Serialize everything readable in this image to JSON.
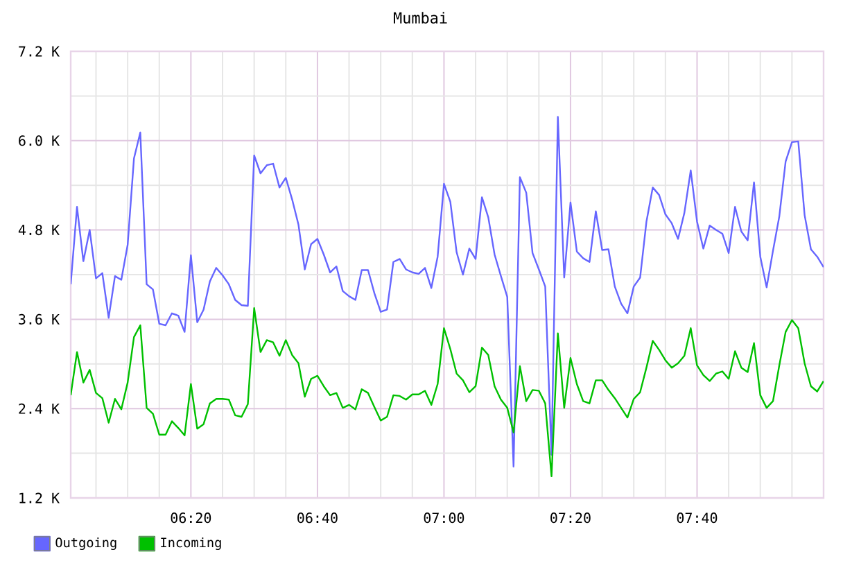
{
  "chart_data": {
    "type": "line",
    "title": "Mumbai",
    "x": [
      6.0167,
      6.0333,
      6.05,
      6.0667,
      6.0833,
      6.1,
      6.1167,
      6.1333,
      6.15,
      6.1667,
      6.1833,
      6.2,
      6.2167,
      6.2333,
      6.25,
      6.2667,
      6.2833,
      6.3,
      6.3167,
      6.3333,
      6.35,
      6.3667,
      6.3833,
      6.4,
      6.4167,
      6.4333,
      6.45,
      6.4667,
      6.4833,
      6.5,
      6.5167,
      6.5333,
      6.55,
      6.5667,
      6.5833,
      6.6,
      6.6167,
      6.6333,
      6.65,
      6.6667,
      6.6833,
      6.7,
      6.7167,
      6.7333,
      6.75,
      6.7667,
      6.7833,
      6.8,
      6.8167,
      6.8333,
      6.85,
      6.8667,
      6.8833,
      6.9,
      6.9167,
      6.9333,
      6.95,
      6.9667,
      6.9833,
      7.0,
      7.0167,
      7.0333,
      7.05,
      7.0667,
      7.0833,
      7.1,
      7.1167,
      7.1333,
      7.15,
      7.1667,
      7.1833,
      7.2,
      7.2167,
      7.2333,
      7.25,
      7.2667,
      7.2833,
      7.3,
      7.3167,
      7.3333,
      7.35,
      7.3667,
      7.3833,
      7.4,
      7.4167,
      7.4333,
      7.45,
      7.4667,
      7.4833,
      7.5,
      7.5167,
      7.5333,
      7.55,
      7.5667,
      7.5833,
      7.6,
      7.6167,
      7.6333,
      7.65,
      7.6667,
      7.6833,
      7.7,
      7.7167,
      7.7333,
      7.75,
      7.7667,
      7.7833,
      7.8,
      7.8167,
      7.8333,
      7.85,
      7.8667,
      7.8833,
      7.9,
      7.9167,
      7.9333,
      7.95,
      7.9667,
      7.9833,
      8.0
    ],
    "series": [
      {
        "name": "Outgoing",
        "color": "#6666ff",
        "values": [
          4070,
          5110,
          4380,
          4800,
          4150,
          4220,
          3620,
          4180,
          4130,
          4600,
          5760,
          6110,
          4070,
          4000,
          3540,
          3520,
          3680,
          3650,
          3430,
          4460,
          3560,
          3730,
          4110,
          4290,
          4190,
          4070,
          3860,
          3790,
          3780,
          5800,
          5560,
          5670,
          5690,
          5370,
          5500,
          5210,
          4870,
          4270,
          4610,
          4680,
          4470,
          4230,
          4310,
          3980,
          3910,
          3860,
          4260,
          4260,
          3950,
          3700,
          3730,
          4370,
          4410,
          4270,
          4230,
          4210,
          4290,
          4020,
          4440,
          5420,
          5180,
          4500,
          4200,
          4550,
          4410,
          5240,
          4970,
          4470,
          4180,
          3900,
          1620,
          5510,
          5300,
          4490,
          4270,
          4040,
          1780,
          6320,
          4160,
          5170,
          4510,
          4420,
          4370,
          5050,
          4530,
          4540,
          4040,
          3810,
          3680,
          4040,
          4160,
          4910,
          5370,
          5270,
          5010,
          4890,
          4680,
          5030,
          5600,
          4910,
          4550,
          4860,
          4800,
          4750,
          4490,
          5110,
          4780,
          4660,
          5440,
          4440,
          4030,
          4520,
          4980,
          5720,
          5980,
          5990,
          5000,
          4540,
          4440,
          4300
        ]
      },
      {
        "name": "Incoming",
        "color": "#00c000",
        "values": [
          2580,
          3160,
          2750,
          2920,
          2610,
          2540,
          2210,
          2530,
          2390,
          2750,
          3360,
          3520,
          2410,
          2330,
          2050,
          2050,
          2230,
          2140,
          2040,
          2730,
          2130,
          2190,
          2470,
          2530,
          2530,
          2520,
          2310,
          2290,
          2460,
          3750,
          3160,
          3320,
          3290,
          3110,
          3320,
          3120,
          3010,
          2560,
          2800,
          2840,
          2700,
          2580,
          2610,
          2410,
          2450,
          2390,
          2660,
          2610,
          2420,
          2240,
          2290,
          2580,
          2570,
          2520,
          2590,
          2590,
          2640,
          2450,
          2730,
          3480,
          3200,
          2870,
          2780,
          2620,
          2700,
          3220,
          3120,
          2700,
          2520,
          2410,
          2080,
          2970,
          2500,
          2650,
          2640,
          2470,
          1490,
          3410,
          2410,
          3080,
          2730,
          2500,
          2470,
          2780,
          2780,
          2650,
          2540,
          2410,
          2280,
          2530,
          2620,
          2950,
          3310,
          3190,
          3050,
          2950,
          3010,
          3110,
          3480,
          2980,
          2850,
          2770,
          2870,
          2900,
          2800,
          3170,
          2950,
          2890,
          3280,
          2580,
          2410,
          2500,
          2980,
          3430,
          3590,
          3480,
          3010,
          2700,
          2630,
          2770
        ]
      }
    ],
    "xlim": [
      6.0167,
      8.0
    ],
    "ylim": [
      1200,
      7200
    ],
    "xticks": [
      {
        "value": 6.0833,
        "label": null
      },
      {
        "value": 6.1667,
        "label": null
      },
      {
        "value": 6.25,
        "label": null
      },
      {
        "value": 6.3333,
        "label": "06:20"
      },
      {
        "value": 6.4167,
        "label": null
      },
      {
        "value": 6.5,
        "label": null
      },
      {
        "value": 6.5833,
        "label": null
      },
      {
        "value": 6.6667,
        "label": "06:40"
      },
      {
        "value": 6.75,
        "label": null
      },
      {
        "value": 6.8333,
        "label": null
      },
      {
        "value": 6.9167,
        "label": null
      },
      {
        "value": 7.0,
        "label": "07:00"
      },
      {
        "value": 7.0833,
        "label": null
      },
      {
        "value": 7.1667,
        "label": null
      },
      {
        "value": 7.25,
        "label": null
      },
      {
        "value": 7.3333,
        "label": "07:20"
      },
      {
        "value": 7.4167,
        "label": null
      },
      {
        "value": 7.5,
        "label": null
      },
      {
        "value": 7.5833,
        "label": null
      },
      {
        "value": 7.6667,
        "label": "07:40"
      },
      {
        "value": 7.75,
        "label": null
      },
      {
        "value": 7.8333,
        "label": null
      },
      {
        "value": 7.9167,
        "label": null
      }
    ],
    "yticks": [
      {
        "value": 1200,
        "label": "1.2 K"
      },
      {
        "value": 1800,
        "label": null
      },
      {
        "value": 2400,
        "label": "2.4 K"
      },
      {
        "value": 3000,
        "label": null
      },
      {
        "value": 3600,
        "label": "3.6 K"
      },
      {
        "value": 4200,
        "label": null
      },
      {
        "value": 4800,
        "label": "4.8 K"
      },
      {
        "value": 5400,
        "label": null
      },
      {
        "value": 6000,
        "label": "6.0 K"
      },
      {
        "value": 6600,
        "label": null
      },
      {
        "value": 7200,
        "label": "7.2 K"
      }
    ],
    "grid": true,
    "legend": "bottom left"
  }
}
